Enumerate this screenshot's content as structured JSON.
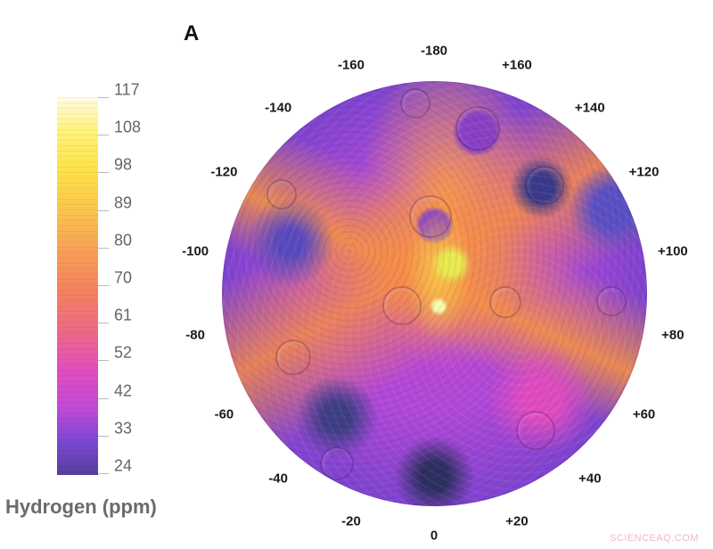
{
  "figure": {
    "panel_label": "A",
    "watermark": "SCIENCEAQ.COM"
  },
  "colorbar": {
    "title": "Hydrogen (ppm)",
    "ticks": [
      "117",
      "108",
      "98",
      "89",
      "80",
      "70",
      "61",
      "52",
      "42",
      "33",
      "24"
    ],
    "min": 24,
    "max": 117,
    "colors": {
      "high": "#fffbe4",
      "upper": "#fde34a",
      "mid_high": "#f8a257",
      "mid": "#ec6a86",
      "mid_low": "#e04cc0",
      "low": "#7d48d4",
      "lowest": "#55409a"
    }
  },
  "map": {
    "projection": "polar stereographic",
    "longitude_labels": [
      {
        "text": "-180",
        "angle": 180
      },
      {
        "text": "-160",
        "angle": -160
      },
      {
        "text": "-140",
        "angle": -140
      },
      {
        "text": "-120",
        "angle": -120
      },
      {
        "text": "-100",
        "angle": -100
      },
      {
        "text": "-80",
        "angle": -80
      },
      {
        "text": "-60",
        "angle": -60
      },
      {
        "text": "-40",
        "angle": -40
      },
      {
        "text": "-20",
        "angle": -20
      },
      {
        "text": "0",
        "angle": 0
      },
      {
        "text": "+20",
        "angle": 20
      },
      {
        "text": "+40",
        "angle": 40
      },
      {
        "text": "+60",
        "angle": 60
      },
      {
        "text": "+80",
        "angle": 80
      },
      {
        "text": "+100",
        "angle": 100
      },
      {
        "text": "+120",
        "angle": 120
      },
      {
        "text": "+140",
        "angle": 140
      },
      {
        "text": "+160",
        "angle": 160
      }
    ]
  }
}
